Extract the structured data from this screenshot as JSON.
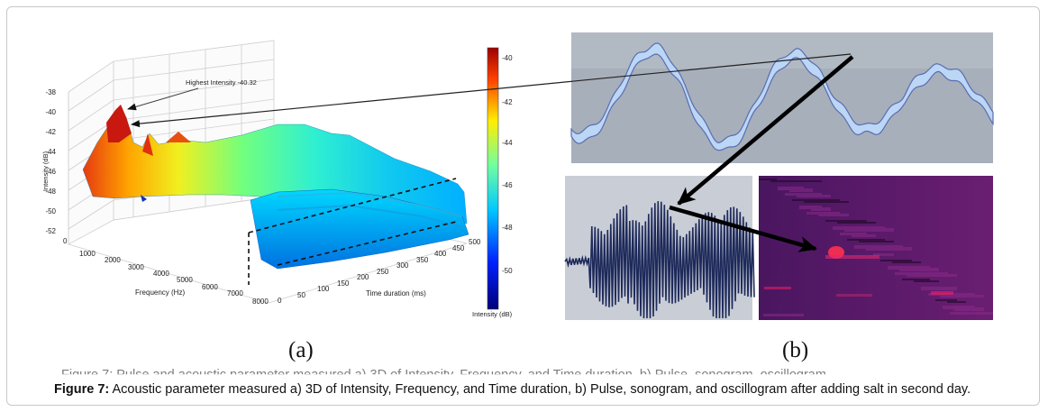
{
  "panel_a": {
    "annotation": "Highest Intensity -40.32",
    "z_axis_label": "Intensity (dB)",
    "z_ticks": [
      "-38",
      "-40",
      "-42",
      "-44",
      "-46",
      "-48",
      "-50",
      "-52"
    ],
    "x_axis_label": "Frequency (Hz)",
    "x_ticks": [
      "0",
      "1000",
      "2000",
      "3000",
      "4000",
      "5000",
      "6000",
      "7000",
      "8000"
    ],
    "y_axis_label": "Time duration (ms)",
    "y_ticks": [
      "0",
      "50",
      "100",
      "150",
      "200",
      "250",
      "300",
      "350",
      "400",
      "450",
      "500"
    ],
    "colorbar_label": "Intensity (dB)",
    "colorbar_ticks": [
      "-40",
      "-42",
      "-44",
      "-46",
      "-48",
      "-50"
    ],
    "label": "(a)"
  },
  "panel_b": {
    "label": "(b)"
  },
  "caption": {
    "figure_label": "Figure 7:",
    "text": " Acoustic parameter measured a) 3D of Intensity, Frequency, and Time duration, b) Pulse, sonogram, and oscillogram after adding salt in second day.",
    "ghost_text": "Figure 7: Pulse and acoustic parameter measured a) 3D of Intensity, Frequency, and Time duration, b) Pulse, sonogram, oscillogram"
  },
  "colors": {
    "oscillogram_bg": "#a7afba",
    "oscillogram_line": "#5a6db0",
    "oscillogram_fill": "#bcd6f6",
    "pulse_bg": "#c9cdd6",
    "pulse_line": "#1e2a5a",
    "sonogram_bg": "#5a1a6a",
    "sonogram_hot": "#ff3050"
  }
}
